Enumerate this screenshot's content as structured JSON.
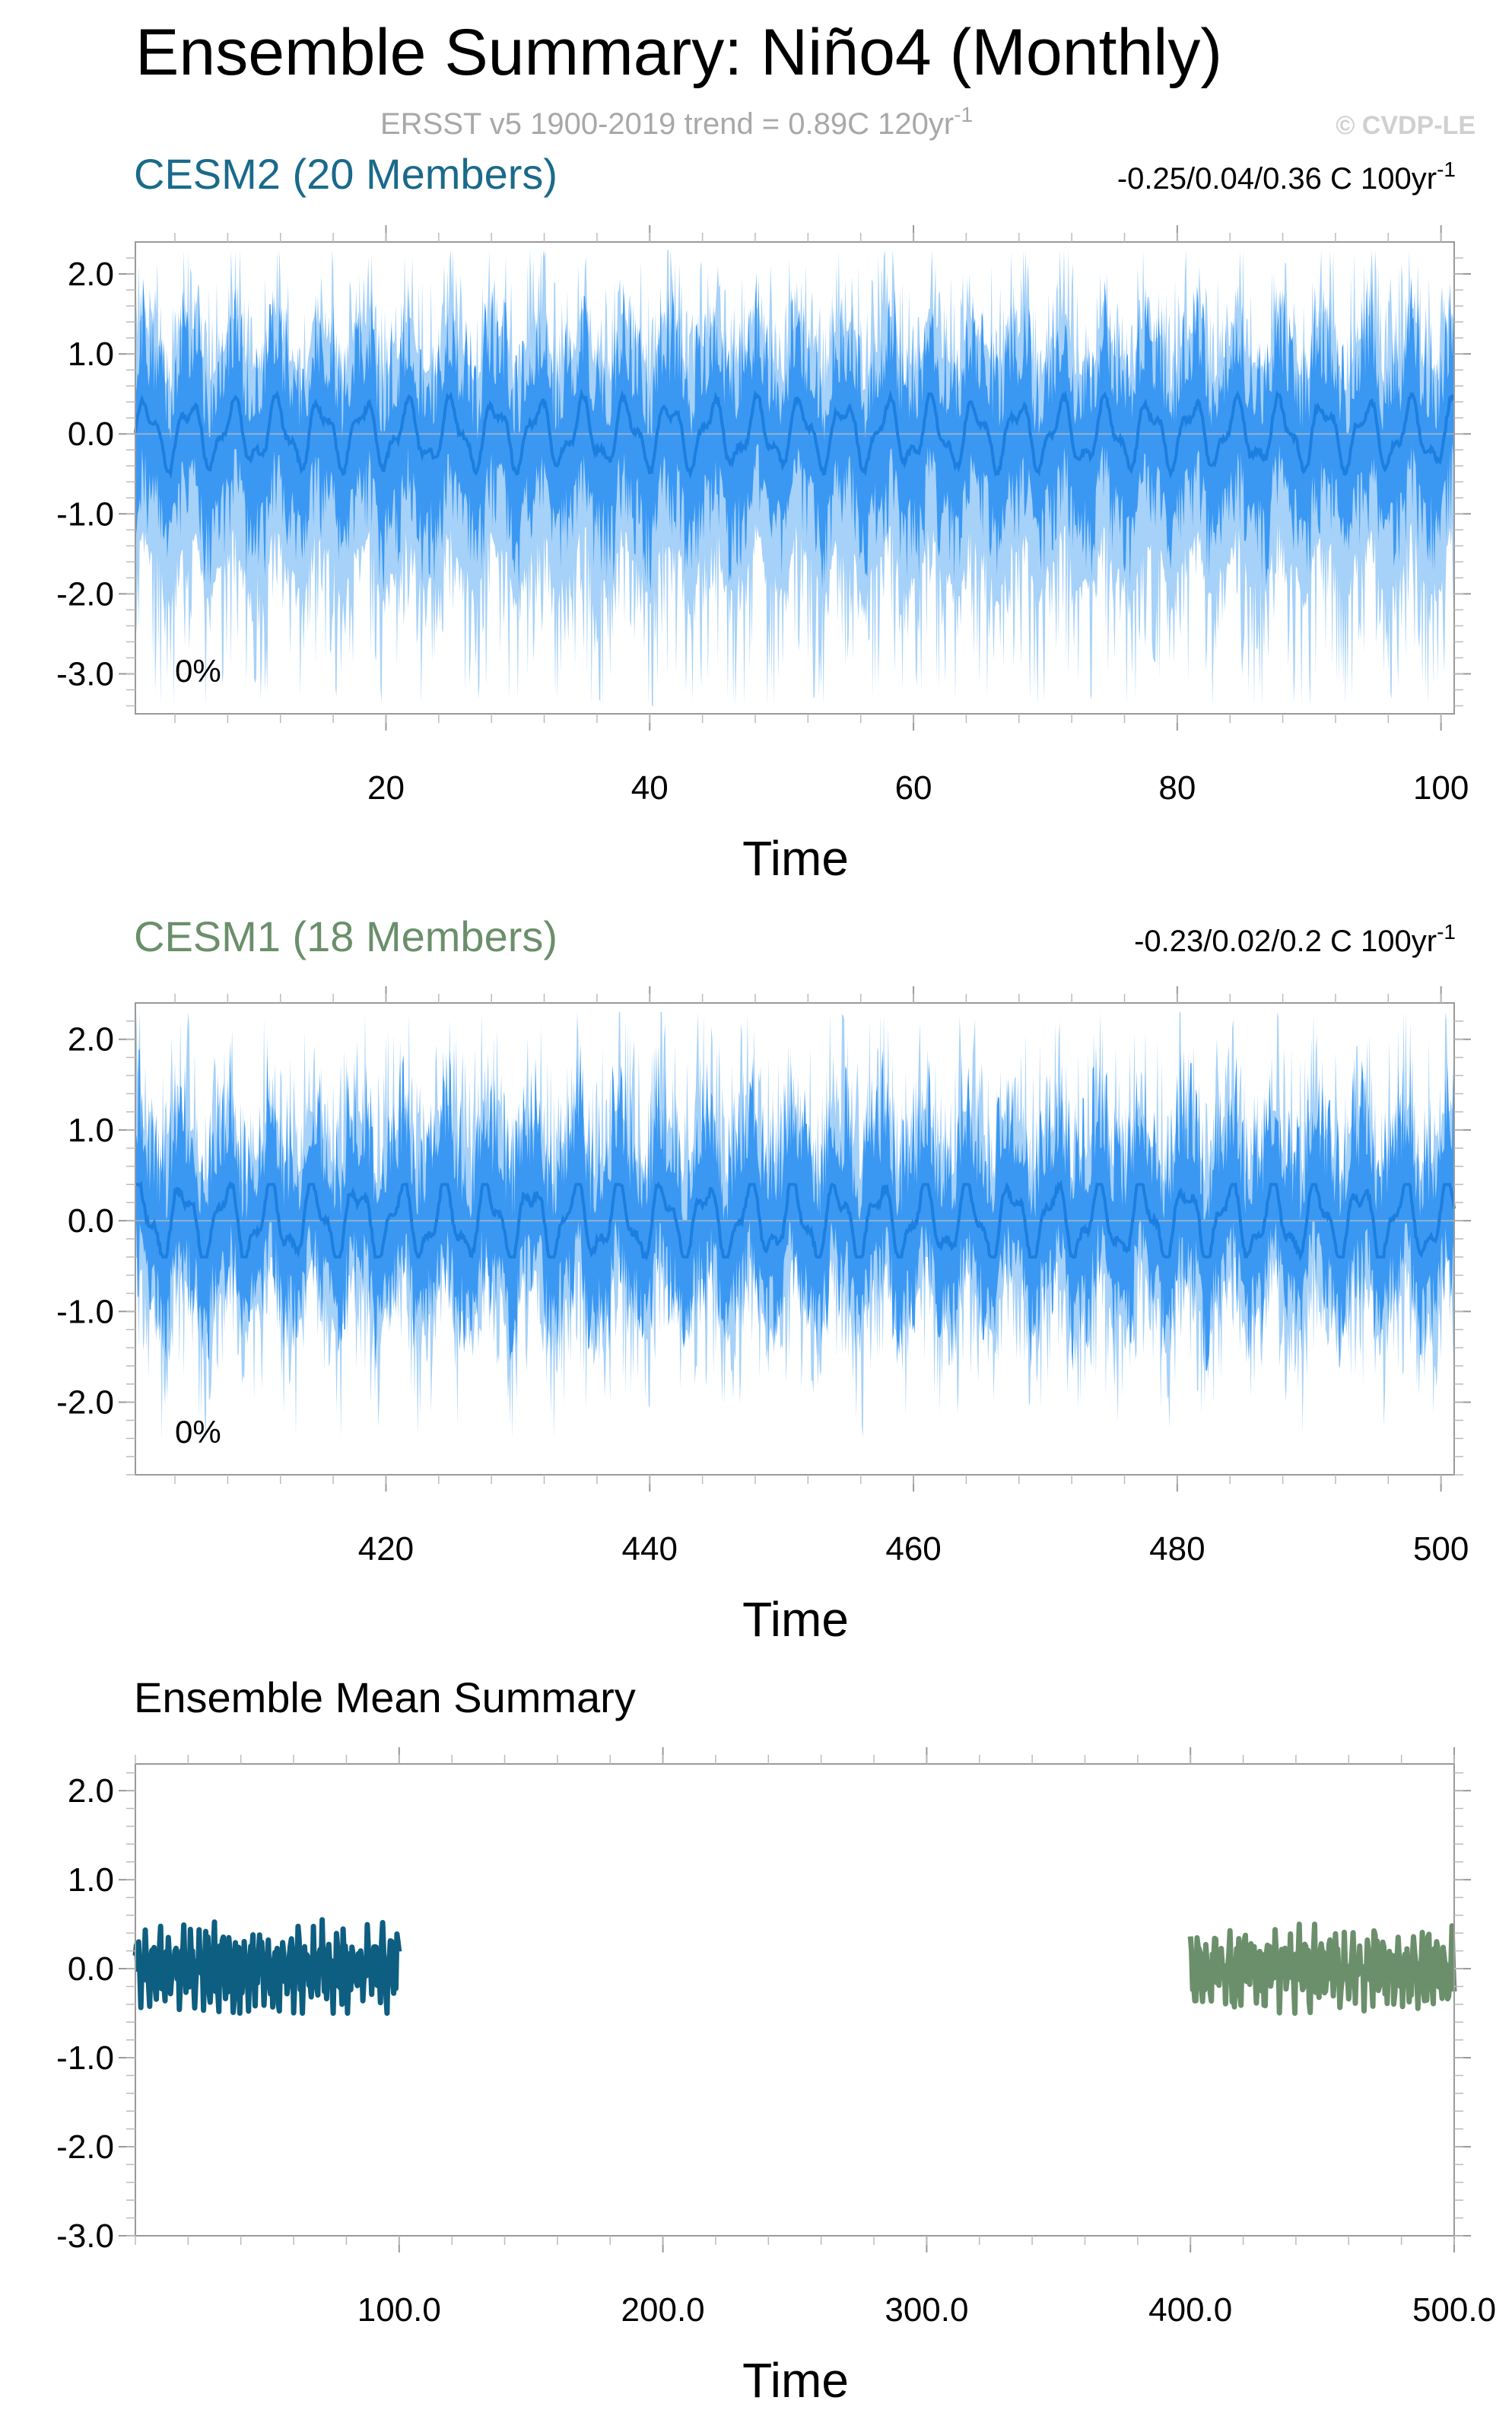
{
  "header": {
    "title": "Ensemble Summary: Niño4 (Monthly)",
    "subtitle_main": "ERSST v5 1900-2019 trend = 0.89C 120yr",
    "subtitle_sup": "-1",
    "credit": "© CVDP-LE"
  },
  "colors": {
    "cesm2": "#1a6a8a",
    "cesm1": "#6a8f6a",
    "band_outer": "#a6d1f8",
    "band_inner": "#3a98f3",
    "mean_line": "#1c7fe0",
    "zero_line": "#8fb0d0",
    "cesm2_mean_summary": "#0d5e80",
    "cesm1_mean_summary": "#6b8f6b"
  },
  "chart_data": [
    {
      "type": "area",
      "title": "CESM2 (20 Members)",
      "trend_main": "-0.25/0.04/0.36 C 100yr",
      "trend_sup": "-1",
      "annotation": "0%",
      "xlabel": "Time",
      "ylabel": "",
      "xlim": [
        1,
        101
      ],
      "ylim": [
        -3.5,
        2.4
      ],
      "x_ticks": [
        "20",
        "40",
        "60",
        "80",
        "100"
      ],
      "y_ticks": [
        "2.0",
        "1.0",
        "0.0",
        "-1.0",
        "-2.0",
        "-3.0"
      ],
      "series": [
        {
          "role": "min-max envelope",
          "lower_range": [
            -3.4,
            -1.6
          ],
          "upper_range": [
            1.0,
            2.3
          ]
        },
        {
          "role": "inner percentile band",
          "lower_range": [
            -1.6,
            -0.6
          ],
          "upper_range": [
            0.4,
            1.6
          ]
        },
        {
          "role": "ensemble mean",
          "range": [
            -0.5,
            0.5
          ]
        }
      ]
    },
    {
      "type": "area",
      "title": "CESM1 (18 Members)",
      "trend_main": "-0.23/0.02/0.2 C 100yr",
      "trend_sup": "-1",
      "annotation": "0%",
      "xlabel": "Time",
      "ylabel": "",
      "xlim": [
        401,
        501
      ],
      "ylim": [
        -2.8,
        2.4
      ],
      "x_ticks": [
        "420",
        "440",
        "460",
        "480",
        "500"
      ],
      "y_ticks": [
        "2.0",
        "1.0",
        "0.0",
        "-1.0",
        "-2.0"
      ],
      "series": [
        {
          "role": "min-max envelope",
          "lower_range": [
            -2.1,
            -0.8
          ],
          "upper_range": [
            0.8,
            2.2
          ]
        },
        {
          "role": "inner percentile band",
          "lower_range": [
            -1.3,
            -0.4
          ],
          "upper_range": [
            0.4,
            1.6
          ]
        },
        {
          "role": "ensemble mean",
          "range": [
            -0.4,
            0.4
          ]
        }
      ]
    },
    {
      "type": "line",
      "title": "Ensemble Mean Summary",
      "xlabel": "Time",
      "ylabel": "",
      "xlim": [
        0,
        500
      ],
      "ylim": [
        -3.0,
        2.3
      ],
      "x_ticks": [
        "100.0",
        "200.0",
        "300.0",
        "400.0",
        "500.0"
      ],
      "y_ticks": [
        "2.0",
        "1.0",
        "0.0",
        "-1.0",
        "-2.0",
        "-3.0"
      ],
      "series": [
        {
          "name": "CESM2",
          "x_range": [
            0,
            100
          ],
          "range": [
            -0.5,
            0.75
          ]
        },
        {
          "name": "CESM1",
          "x_range": [
            400,
            500
          ],
          "range": [
            -0.5,
            0.5
          ]
        }
      ]
    }
  ]
}
